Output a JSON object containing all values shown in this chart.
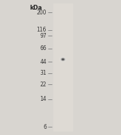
{
  "background_color": "#d8d5d0",
  "gel_bg_color": "#e8e4de",
  "ladder_color": "#888888",
  "band_color": "#555555",
  "title": "kDa",
  "markers": [
    200,
    116,
    97,
    66,
    44,
    31,
    22,
    14,
    6
  ],
  "marker_labels": [
    "200",
    "116",
    "97",
    "66",
    "44",
    "31",
    "22",
    "14",
    "6"
  ],
  "band_kda": 47,
  "band_intensity": 0.72,
  "fig_width": 1.77,
  "fig_height": 1.97,
  "dpi": 100
}
